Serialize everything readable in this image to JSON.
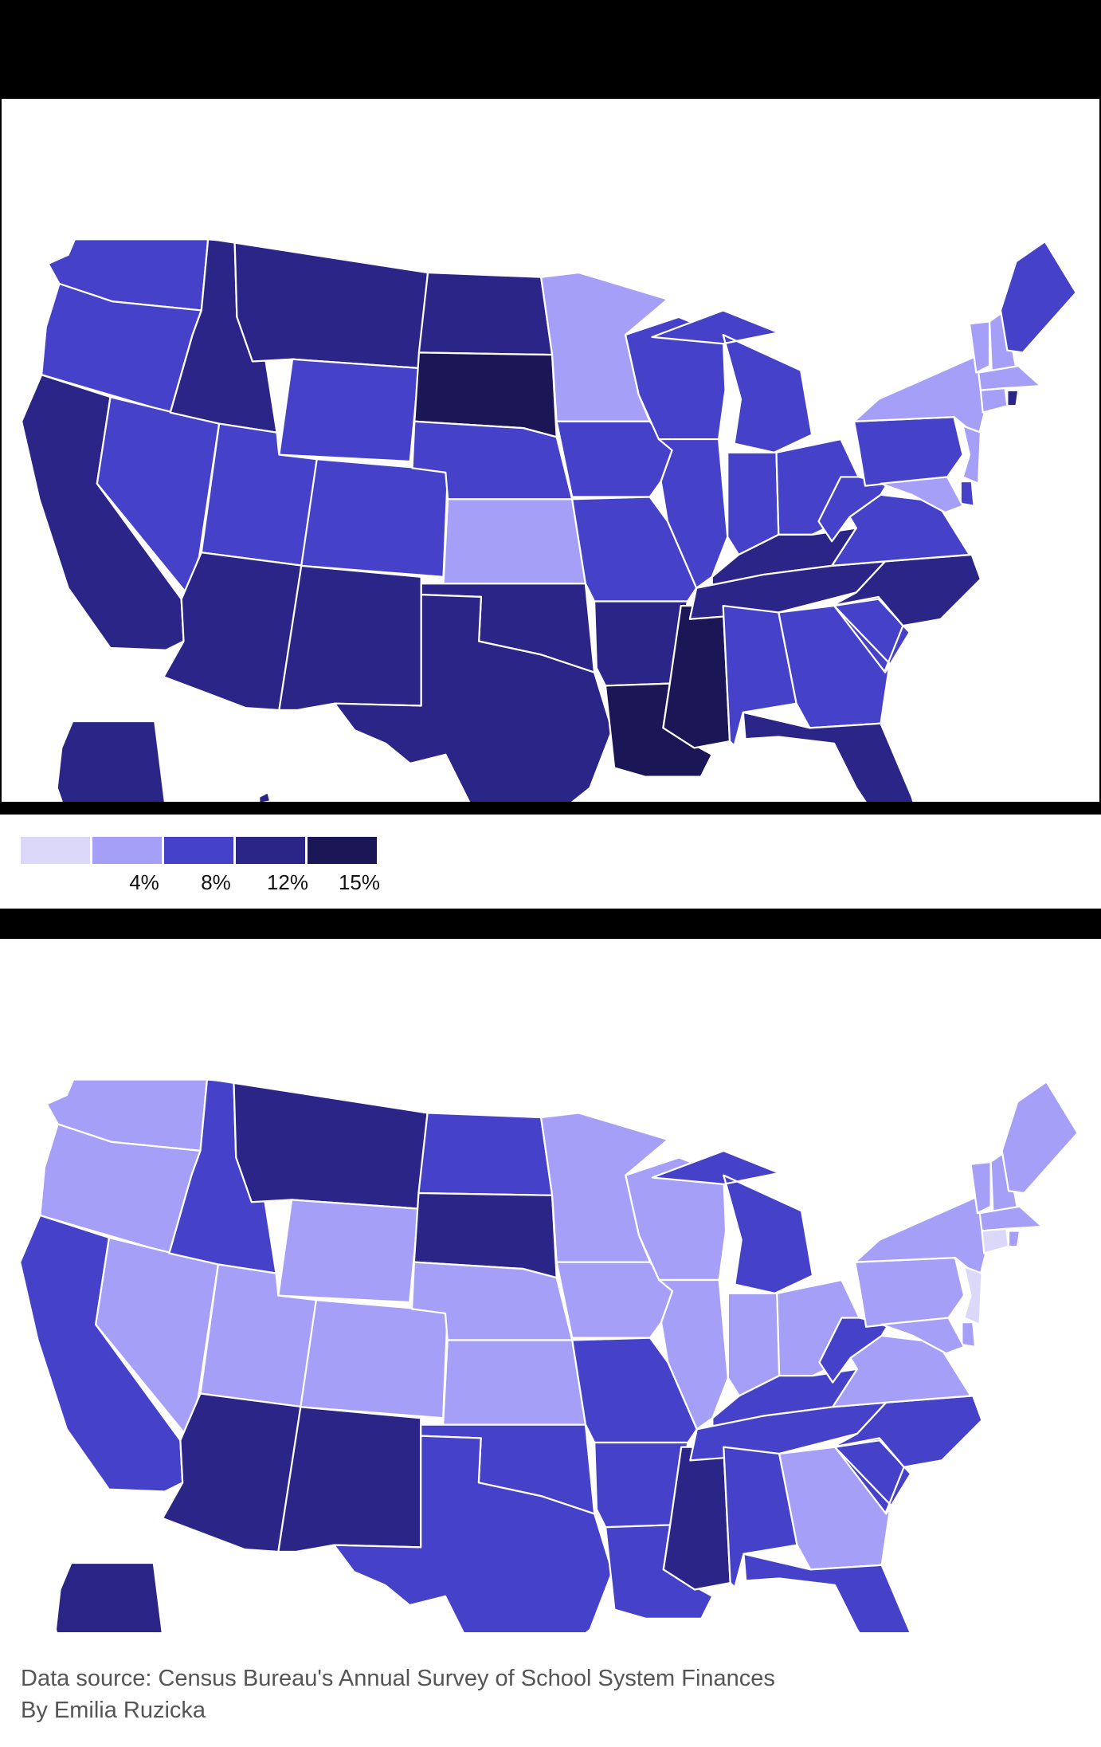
{
  "legend": {
    "colors": [
      "#dcd8fa",
      "#a59ff8",
      "#4641c9",
      "#2b2587",
      "#1b1656"
    ],
    "ticks": [
      "4%",
      "8%",
      "12%",
      "15%"
    ]
  },
  "maps": [
    {
      "states": {
        "WA": 2,
        "OR": 2,
        "CA": 3,
        "NV": 2,
        "ID": 3,
        "MT": 3,
        "WY": 2,
        "UT": 2,
        "AZ": 3,
        "CO": 2,
        "NM": 3,
        "ND": 3,
        "SD": 4,
        "NE": 2,
        "KS": 1,
        "OK": 3,
        "TX": 3,
        "MN": 1,
        "IA": 2,
        "MO": 2,
        "AR": 3,
        "LA": 4,
        "WI": 2,
        "IL": 2,
        "MS": 4,
        "MI": 2,
        "IN": 2,
        "KY": 3,
        "TN": 3,
        "AL": 2,
        "OH": 2,
        "GA": 2,
        "FL": 3,
        "SC": 2,
        "NC": 3,
        "VA": 2,
        "WV": 2,
        "PA": 2,
        "NY": 1,
        "VT": 1,
        "NH": 1,
        "ME": 2,
        "MA": 1,
        "CT": 1,
        "RI": 3,
        "NJ": 1,
        "DE": 2,
        "MD": 1,
        "AK": 3,
        "HI": 3
      }
    },
    {
      "states": {
        "WA": 1,
        "OR": 1,
        "CA": 2,
        "NV": 1,
        "ID": 2,
        "MT": 3,
        "WY": 1,
        "UT": 1,
        "AZ": 3,
        "CO": 1,
        "NM": 3,
        "ND": 2,
        "SD": 3,
        "NE": 1,
        "KS": 1,
        "OK": 2,
        "TX": 2,
        "MN": 1,
        "IA": 1,
        "MO": 2,
        "AR": 2,
        "LA": 2,
        "WI": 1,
        "IL": 1,
        "MS": 3,
        "MI": 2,
        "IN": 1,
        "KY": 2,
        "TN": 2,
        "AL": 2,
        "OH": 1,
        "GA": 1,
        "FL": 2,
        "SC": 2,
        "NC": 2,
        "VA": 1,
        "WV": 2,
        "PA": 1,
        "NY": 1,
        "VT": 1,
        "NH": 1,
        "ME": 1,
        "MA": 1,
        "CT": 0,
        "RI": 1,
        "NJ": 0,
        "DE": 1,
        "MD": 1,
        "AK": 3,
        "HI": 2
      }
    }
  ],
  "footer": {
    "source": "Data source: Census Bureau's Annual Survey of School System Finances",
    "byline": "By Emilia Ruzicka"
  }
}
